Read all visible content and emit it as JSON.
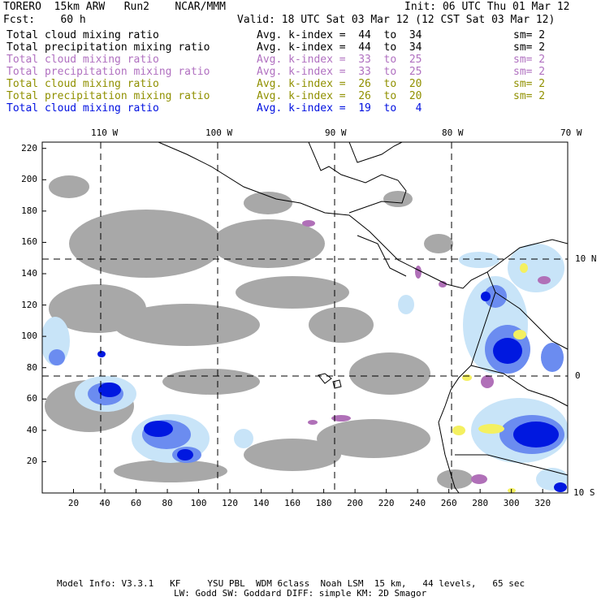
{
  "header": {
    "left1": "TORERO  15km ARW   Run2    NCAR/MMM",
    "right1": "Init: 06 UTC Thu 01 Mar 12",
    "left2": "Fcst:    60 h",
    "right2": "Valid: 18 UTC Sat 03 Mar 12 (12 CST Sat 03 Mar 12)"
  },
  "fields": [
    {
      "name": "Total cloud mixing ratio",
      "kidx": "Avg. k-index =  44  to  34",
      "sm": "sm= 2",
      "color": "#000000"
    },
    {
      "name": "Total precipitation mixing ratio",
      "kidx": "Avg. k-index =  44  to  34",
      "sm": "sm= 2",
      "color": "#000000"
    },
    {
      "name": "Total cloud mixing ratio",
      "kidx": "Avg. k-index =  33  to  25",
      "sm": "sm= 2",
      "color": "#b070c0"
    },
    {
      "name": "Total precipitation mixing ratio",
      "kidx": "Avg. k-index =  33  to  25",
      "sm": "sm= 2",
      "color": "#b070c0"
    },
    {
      "name": "Total cloud mixing ratio",
      "kidx": "Avg. k-index =  26  to  20",
      "sm": "sm= 2",
      "color": "#909000"
    },
    {
      "name": "Total precipitation mixing ratio",
      "kidx": "Avg. k-index =  26  to  20",
      "sm": "sm= 2",
      "color": "#909000"
    },
    {
      "name": "Total cloud mixing ratio",
      "kidx": "Avg. k-index =  19  to   4",
      "sm": "",
      "color": "#0010e0"
    }
  ],
  "map": {
    "lon_labels": [
      "110 W",
      "100 W",
      "90 W",
      "80 W",
      "70 W"
    ],
    "lat_labels": [
      "10 N",
      "0",
      "10 S"
    ],
    "x_ticks": [
      "20",
      "40",
      "60",
      "80",
      "100",
      "120",
      "140",
      "160",
      "180",
      "200",
      "220",
      "240",
      "260",
      "280",
      "300",
      "320"
    ],
    "y_ticks": [
      "20",
      "40",
      "60",
      "80",
      "100",
      "120",
      "140",
      "160",
      "180",
      "200",
      "220"
    ],
    "colors": {
      "gray": "#a0a0a0",
      "light_blue": "#c8e4f8",
      "mid_blue": "#6b8cf0",
      "deep_blue": "#0018e0",
      "purple": "#b070b8",
      "yellow": "#f4f060"
    }
  },
  "footer": {
    "line1": "Model Info: V3.3.1   KF     YSU PBL  WDM 6class  Noah LSM  15 km,   44 levels,   65 sec",
    "line2": "LW: Godd SW: Goddard DIFF: simple KM: 2D Smagor"
  }
}
